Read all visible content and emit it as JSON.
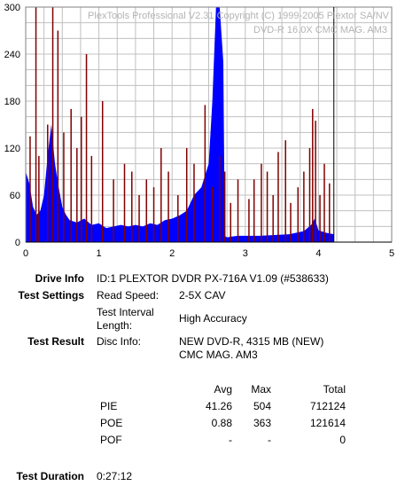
{
  "watermark": {
    "line1": "PlexTools Professional V2.31 Copyright (C) 1999-2005 Plextor SA/NV",
    "line2": "DVD-R   16.0X   CMC MAG. AM3"
  },
  "chart_data": {
    "type": "area",
    "xlabel": "",
    "ylabel": "",
    "xlim": [
      0,
      5
    ],
    "ylim": [
      0,
      300
    ],
    "x_ticks": [
      "0",
      "1",
      "2",
      "3",
      "4",
      "5"
    ],
    "y_ticks": [
      "0",
      "60",
      "120",
      "180",
      "240",
      "300"
    ],
    "grid": true,
    "end_marker_x": 4.21,
    "colors": {
      "pie": "#0000ff",
      "poe": "#800000",
      "grid": "#c0c0c0",
      "end_marker": "#000000"
    },
    "series": [
      {
        "color": "#0000ff",
        "x": [
          0.0,
          0.05,
          0.1,
          0.15,
          0.2,
          0.25,
          0.3,
          0.35,
          0.4,
          0.45,
          0.5,
          0.55,
          0.6,
          0.7,
          0.8,
          0.9,
          1.0,
          1.1,
          1.2,
          1.3,
          1.4,
          1.5,
          1.6,
          1.7,
          1.8,
          1.9,
          2.0,
          2.1,
          2.2,
          2.3,
          2.4,
          2.5,
          2.55,
          2.6,
          2.65,
          2.7,
          2.72,
          2.75,
          2.8,
          2.9,
          3.0,
          3.2,
          3.4,
          3.6,
          3.7,
          3.8,
          3.9,
          3.95,
          4.0,
          4.1,
          4.21
        ],
        "y": [
          90,
          75,
          45,
          35,
          40,
          60,
          110,
          150,
          100,
          70,
          45,
          35,
          28,
          25,
          30,
          22,
          24,
          18,
          20,
          22,
          20,
          22,
          20,
          24,
          22,
          28,
          30,
          34,
          40,
          60,
          70,
          100,
          180,
          300,
          300,
          230,
          8,
          6,
          7,
          8,
          8,
          8,
          9,
          10,
          12,
          14,
          22,
          30,
          15,
          12,
          10
        ]
      },
      {
        "color": "#800000",
        "x": [
          0.06,
          0.14,
          0.18,
          0.3,
          0.37,
          0.44,
          0.52,
          0.62,
          0.7,
          0.76,
          0.83,
          0.9,
          1.05,
          1.2,
          1.35,
          1.45,
          1.55,
          1.65,
          1.75,
          1.85,
          1.95,
          2.08,
          2.2,
          2.3,
          2.45,
          2.55,
          2.65,
          2.72,
          2.8,
          2.9,
          3.05,
          3.12,
          3.22,
          3.3,
          3.38,
          3.45,
          3.55,
          3.62,
          3.72,
          3.8,
          3.88,
          3.92,
          3.96,
          4.02,
          4.08,
          4.15
        ],
        "y": [
          135,
          300,
          110,
          150,
          300,
          270,
          140,
          170,
          120,
          160,
          240,
          110,
          180,
          80,
          100,
          90,
          60,
          80,
          70,
          120,
          90,
          60,
          120,
          100,
          175,
          70,
          110,
          90,
          50,
          80,
          55,
          80,
          100,
          90,
          60,
          115,
          130,
          50,
          70,
          90,
          120,
          170,
          155,
          60,
          100,
          75
        ]
      }
    ]
  },
  "info": {
    "drive_info_label": "Drive Info",
    "drive_info_value": "ID:1 PLEXTOR DVDR PX-716A V1.09 (#538633)",
    "test_settings_label": "Test Settings",
    "read_speed_label": "Read Speed:",
    "read_speed_value": "2-5X CAV",
    "interval_label_1": "Test Interval",
    "interval_label_2": "Length:",
    "interval_value": "High Accuracy",
    "test_result_label": "Test Result",
    "disc_info_label": "Disc Info:",
    "disc_info_line1": "NEW DVD-R, 4315 MB (NEW)",
    "disc_info_line2": "CMC MAG. AM3",
    "test_duration_label": "Test Duration",
    "test_duration_value": "0:27:12"
  },
  "results": {
    "headers": [
      "Avg",
      "Max",
      "Total"
    ],
    "rows": [
      {
        "name": "PIE",
        "avg": "41.26",
        "max": "504",
        "total": "712124"
      },
      {
        "name": "POE",
        "avg": "0.88",
        "max": "363",
        "total": "121614"
      },
      {
        "name": "POF",
        "avg": "-",
        "max": "-",
        "total": "0"
      }
    ]
  }
}
